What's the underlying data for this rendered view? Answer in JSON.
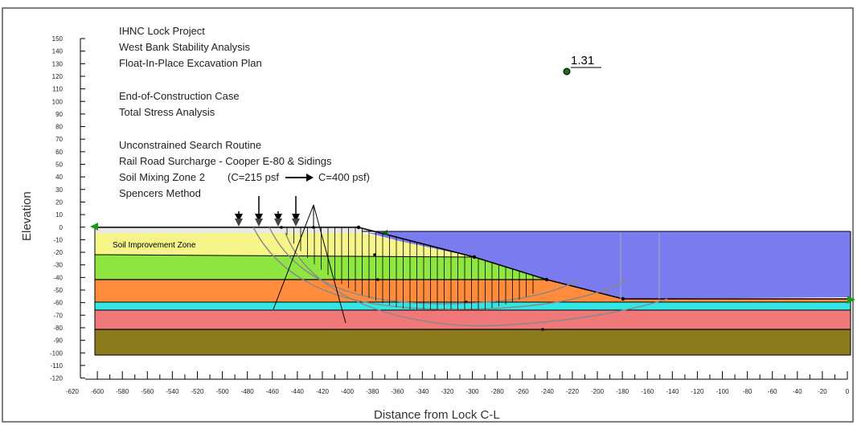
{
  "annotations": [
    "IHNC Lock Project",
    "West Bank Stability Analysis",
    "Float-In-Place Excavation Plan",
    "End-of-Construction Case",
    "Total Stress Analysis",
    "Unconstrained Search Routine",
    "Rail Road Surcharge - Cooper E-80 & Sidings",
    "Soil Mixing Zone 2",
    "Spencers Method"
  ],
  "soil_mixing_values": {
    "c_from": "(C=215 psf",
    "c_to": "C=400 psf)"
  },
  "factor_of_safety": "1.31",
  "zone_label": "Soil Improvement Zone",
  "axes": {
    "ylabel": "Elevation",
    "xlabel": "Distance from Lock C-L",
    "y_ticks": [
      "150",
      "140",
      "130",
      "120",
      "110",
      "100",
      "90",
      "80",
      "70",
      "60",
      "50",
      "40",
      "30",
      "20",
      "10",
      "0",
      "-10",
      "-20",
      "-30",
      "-40",
      "-50",
      "-60",
      "-70",
      "-80",
      "-90",
      "-100",
      "-110",
      "-120"
    ],
    "x_ticks": [
      "-620",
      "-600",
      "-580",
      "-560",
      "-540",
      "-520",
      "-500",
      "-480",
      "-460",
      "-440",
      "-420",
      "-400",
      "-380",
      "-360",
      "-340",
      "-320",
      "-300",
      "-280",
      "-260",
      "-240",
      "-220",
      "-200",
      "-180",
      "-160",
      "-140",
      "-120",
      "-100",
      "-80",
      "-60",
      "-40",
      "-20",
      "0"
    ]
  },
  "colors": {
    "water": "#7b7bf0",
    "fill_top": "#e8e8e8",
    "soil_improvement": "#f5f58a",
    "green_layer": "#8fe640",
    "orange_layer": "#ff8c3c",
    "cyan_layer": "#33e6e6",
    "pink_layer": "#f07878",
    "olive_layer": "#8a7a1c",
    "lines": "#000000"
  }
}
